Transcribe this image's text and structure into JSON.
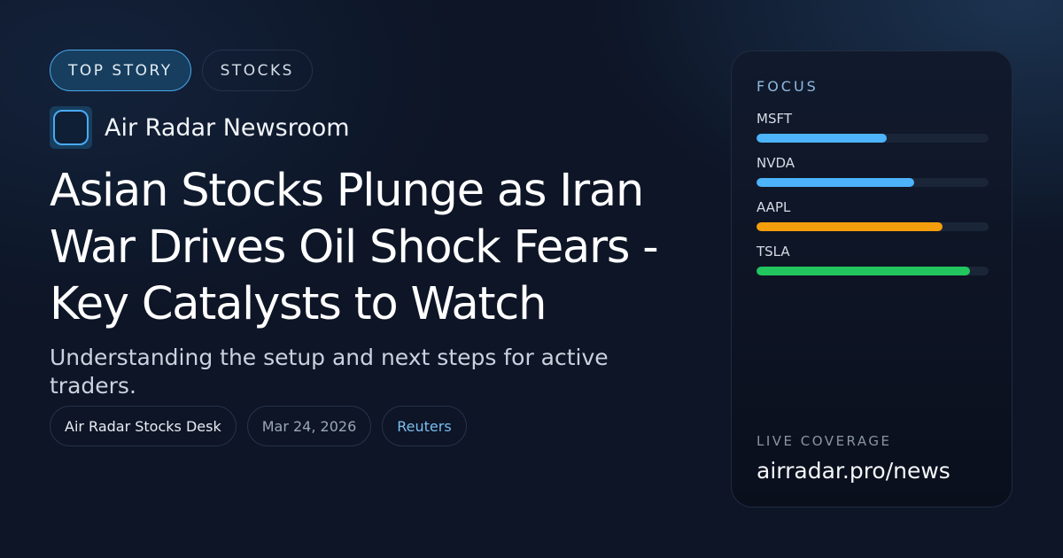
{
  "tags": [
    {
      "label": "TOP STORY",
      "primary": true
    },
    {
      "label": "STOCKS",
      "primary": false
    }
  ],
  "brand": {
    "name": "Air Radar Newsroom",
    "logo_icon": "rounded-square-icon"
  },
  "headline": "Asian Stocks Plunge as Iran War Drives Oil Shock Fears - Key Catalysts to Watch",
  "subtitle": "Understanding the setup and next steps for active traders.",
  "meta": {
    "desk": "Air Radar Stocks Desk",
    "date": "Mar 24, 2026",
    "source": "Reuters"
  },
  "focus": {
    "label": "FOCUS",
    "items": [
      {
        "symbol": "MSFT",
        "percent": 56,
        "color": "#4db3fa"
      },
      {
        "symbol": "NVDA",
        "percent": 68,
        "color": "#4db3fa"
      },
      {
        "symbol": "AAPL",
        "percent": 80,
        "color": "#f59e0b"
      },
      {
        "symbol": "TSLA",
        "percent": 92,
        "color": "#22c55e"
      }
    ]
  },
  "coverage": {
    "label": "LIVE COVERAGE",
    "url": "airradar.pro/news"
  }
}
